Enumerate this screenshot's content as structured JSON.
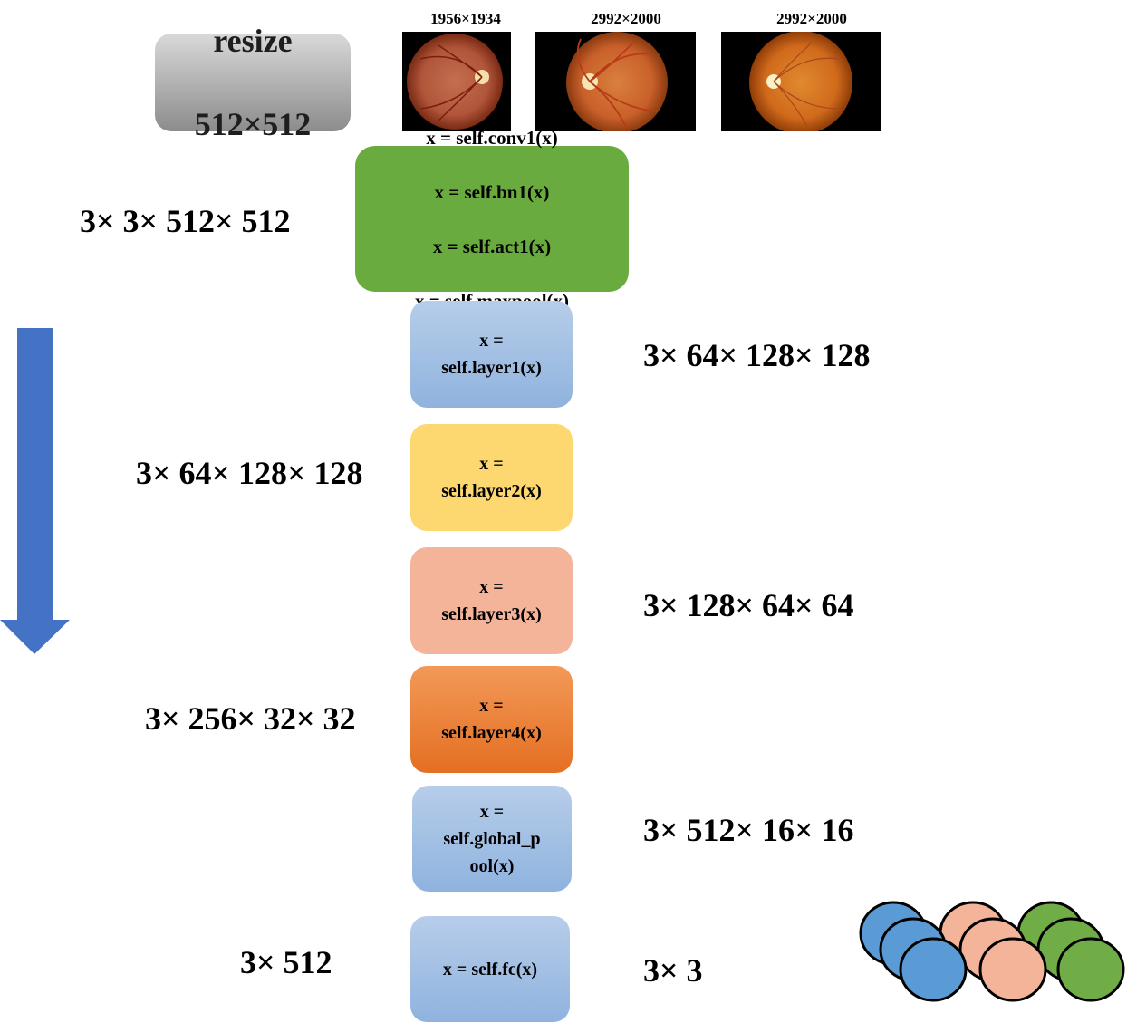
{
  "images": [
    {
      "label": "1956×1934",
      "colors": {
        "outer": "#7a2a14",
        "mid": "#b0553a",
        "inner": "#c4704f"
      }
    },
    {
      "label": "2992×2000",
      "colors": {
        "outer": "#8a3a10",
        "mid": "#c9602a",
        "inner": "#d9803e"
      }
    },
    {
      "label": "2992×2000",
      "colors": {
        "outer": "#8e3c08",
        "mid": "#d06a1c",
        "inner": "#e08a2e"
      }
    }
  ],
  "resize_box": {
    "line1": "resize",
    "line2": "512×512"
  },
  "conv_block": {
    "lines": [
      "x = self.conv1(x)",
      "x = self.bn1(x)",
      "x = self.act1(x)",
      "x = self.maxpool(x)"
    ],
    "color": "#6aab3f"
  },
  "layers": [
    {
      "text": "x =\nself.layer1(x)",
      "color": "#9dbbe3"
    },
    {
      "text": "x =\nself.layer2(x)",
      "color": "#fdd870"
    },
    {
      "text": "x =\nself.layer3(x)",
      "color": "#f4b49a"
    },
    {
      "text": "x =\nself.layer4(x)",
      "color": "#ec7f35"
    },
    {
      "text": "x =\nself.global_p\nool(x)",
      "color": "#9dbbe3"
    },
    {
      "text": "x = self.fc(x)",
      "color": "#9dbbe3"
    }
  ],
  "dimensions": {
    "input": "3× 3× 512× 512",
    "after_layer1": "3× 64× 128× 128",
    "after_layer2_left": "3× 64× 128× 128",
    "after_layer3": "3× 128× 64× 64",
    "after_layer4_left": "3× 256× 32× 32",
    "after_pool": "3× 512× 16× 16",
    "after_pool_left": "3× 512",
    "output": "3× 3"
  },
  "arrow": {
    "color": "#4472c4",
    "direction": "down"
  },
  "output_ovals": {
    "colors": [
      "#5b9bd5",
      "#f4b49a",
      "#70ad47"
    ]
  }
}
